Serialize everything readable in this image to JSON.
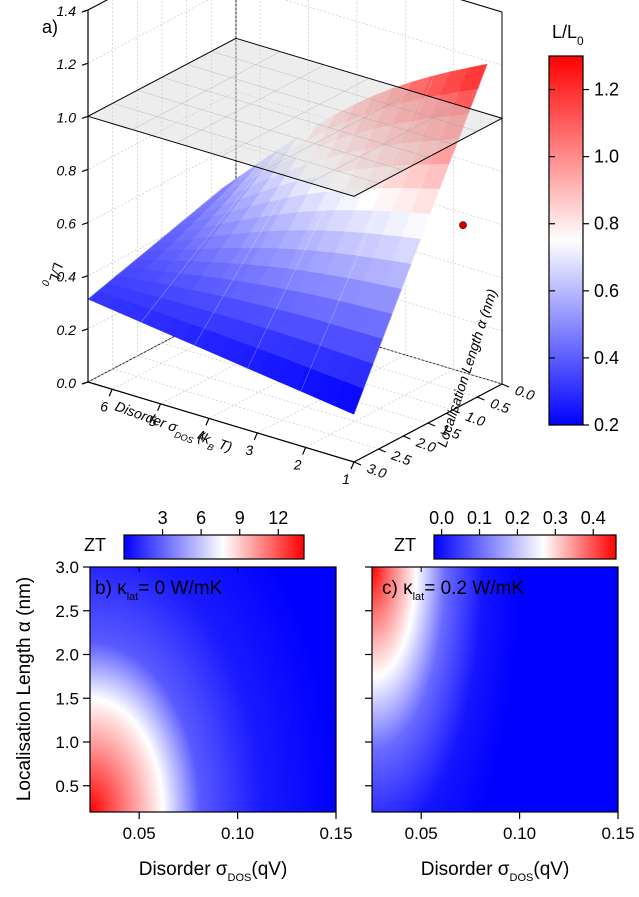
{
  "chart_data": [
    {
      "type": "surface3d",
      "panel": "a)",
      "zlabel_main": "L/L",
      "zlabel_sub": "0",
      "xlabel_main": "Disorder σ",
      "xlabel_sub": "DOS",
      "xlabel_unit_a": " (k",
      "xlabel_unit_sub": "B",
      "xlabel_unit_b": " T)",
      "ylabel": "Localisation Length α (nm)",
      "x_ticks": [
        "1",
        "2",
        "3",
        "4",
        "5",
        "6"
      ],
      "y_ticks": [
        "0.0",
        "0.5",
        "1.0",
        "1.5",
        "2.0",
        "2.5",
        "3.0"
      ],
      "z_ticks": [
        "0.0",
        "0.2",
        "0.4",
        "0.6",
        "0.8",
        "1.0",
        "1.2",
        "1.4"
      ],
      "xlim": [
        1,
        6.5
      ],
      "ylim": [
        0,
        3
      ],
      "zlim": [
        0,
        1.4
      ],
      "reference_plane_z": 1.0,
      "highlight_point": {
        "x": 1.5,
        "y": 0.3,
        "z": 0.6
      },
      "corner_values": {
        "x1_y0": 1.35,
        "x6_y0": 0.58,
        "x1_y3": 0.18,
        "x6_y3": 0.3
      },
      "colorbar": {
        "title_main": "L/L",
        "title_sub": "0",
        "ticks": [
          "0.2",
          "0.4",
          "0.6",
          "0.8",
          "1.0",
          "1.2"
        ],
        "range": [
          0.2,
          1.3
        ],
        "colors": [
          "#0000ff",
          "#ffffff",
          "#ff0000"
        ]
      }
    },
    {
      "type": "heatmap",
      "panel_label": "b) κ",
      "panel_sub": "lat",
      "panel_value": "= 0 W/mK",
      "xlabel_main": "Disorder σ",
      "xlabel_sub": "DOS",
      "xlabel_unit": "(qV)",
      "ylabel": "Localisation Length α (nm)",
      "x_ticks": [
        "0.05",
        "0.10",
        "0.15"
      ],
      "y_ticks": [
        "0.5",
        "1.0",
        "1.5",
        "2.0",
        "2.5",
        "3.0"
      ],
      "xlim": [
        0.025,
        0.15
      ],
      "ylim": [
        0.2,
        3.0
      ],
      "colorbar": {
        "title": "ZT",
        "ticks": [
          "3",
          "6",
          "9",
          "12"
        ],
        "range": [
          0,
          14
        ],
        "colors": [
          "#0000ff",
          "#ffffff",
          "#ff0000"
        ]
      }
    },
    {
      "type": "heatmap",
      "panel_label": "c) κ",
      "panel_sub": "lat",
      "panel_value": "= 0.2 W/mK",
      "xlabel_main": "Disorder σ",
      "xlabel_sub": "DOS",
      "xlabel_unit": "(qV)",
      "x_ticks": [
        "0.05",
        "0.10",
        "0.15"
      ],
      "xlim": [
        0.025,
        0.15
      ],
      "ylim": [
        0.2,
        3.0
      ],
      "colorbar": {
        "title": "ZT",
        "ticks": [
          "0.0",
          "0.1",
          "0.2",
          "0.3",
          "0.4"
        ],
        "range": [
          -0.02,
          0.46
        ],
        "colors": [
          "#0000ff",
          "#ffffff",
          "#ff0000"
        ]
      }
    }
  ]
}
